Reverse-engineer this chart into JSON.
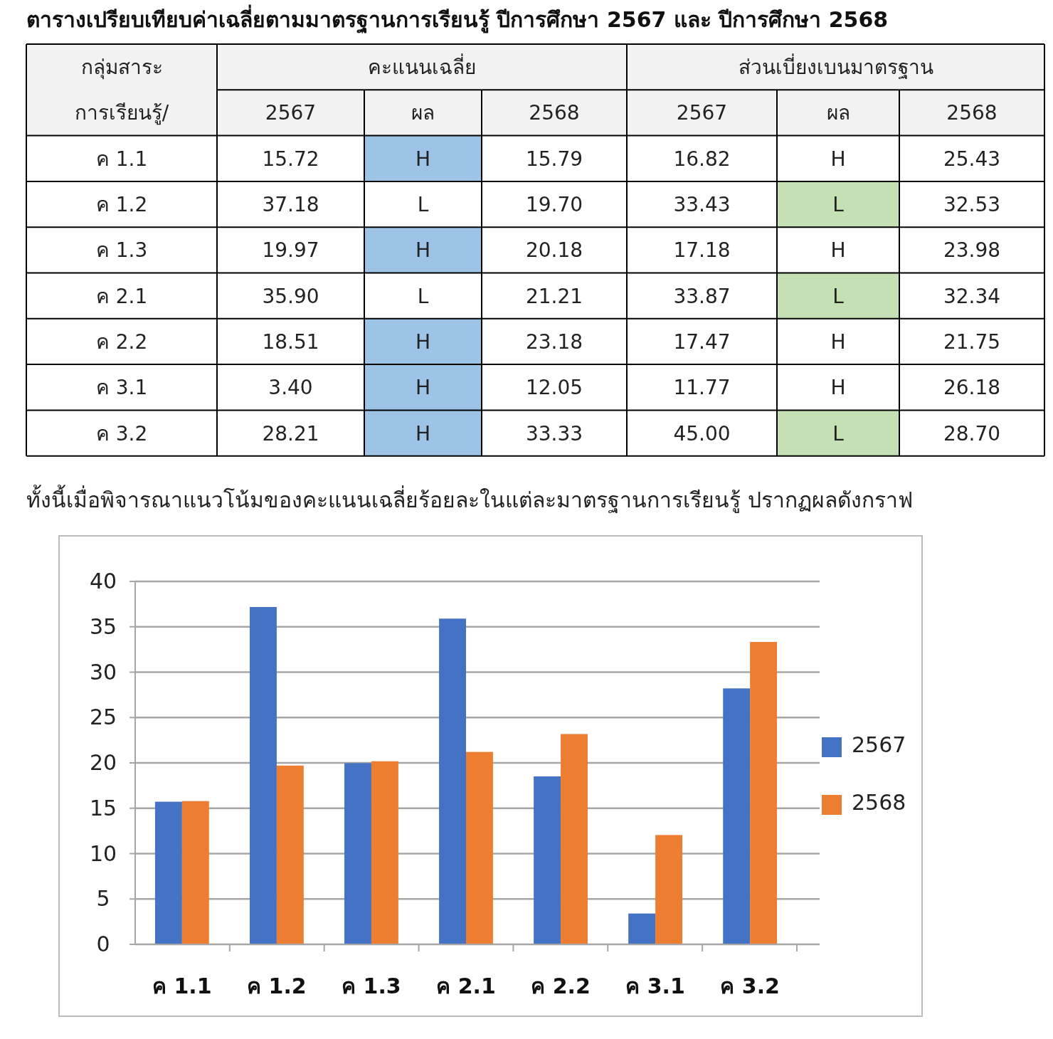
{
  "chart_data": [
    {
      "type": "other",
      "title": "ตารางเปรียบเทียบค่าเฉลี่ยตามมาตรฐานการเรียนรู้ ปีการศึกษา 2567 และ ปีการศึกษา 2568",
      "ylabel": "กลุ่มสาระ\nการเรียนรู้/",
      "annotations": [
        "คะแนนเฉลี่ย",
        "ส่วนเบี่ยงเบนมาตรฐาน"
      ],
      "categories": [
        "2567",
        "ผล",
        "2568",
        "2567",
        "ผล",
        "2568"
      ],
      "y_categories": [
        "ค 1.1",
        "ค 1.2",
        "ค 1.3",
        "ค 2.1",
        "ค 2.2",
        "ค 3.1",
        "ค 3.2"
      ],
      "cell_labels": [
        [
          "15.72",
          "H",
          "15.79",
          "16.82",
          "H",
          "25.43"
        ],
        [
          "37.18",
          "L",
          "19.70",
          "33.43",
          "L",
          "32.53"
        ],
        [
          "19.97",
          "H",
          "20.18",
          "17.18",
          "H",
          "23.98"
        ],
        [
          "35.90",
          "L",
          "21.21",
          "33.87",
          "L",
          "32.34"
        ],
        [
          "18.51",
          "H",
          "23.18",
          "17.47",
          "H",
          "21.75"
        ],
        [
          "3.40",
          "H",
          "12.05",
          "11.77",
          "H",
          "26.18"
        ],
        [
          "28.21",
          "H",
          "33.33",
          "45.00",
          "L",
          "28.70"
        ]
      ],
      "colors": [
        [
          null,
          "#9dc3e6",
          null,
          null,
          null,
          null
        ],
        [
          null,
          null,
          null,
          null,
          "#c5e0b4",
          null
        ],
        [
          null,
          "#9dc3e6",
          null,
          null,
          null,
          null
        ],
        [
          null,
          null,
          null,
          null,
          "#c5e0b4",
          null
        ],
        [
          null,
          "#9dc3e6",
          null,
          null,
          null,
          null
        ],
        [
          null,
          "#9dc3e6",
          null,
          null,
          null,
          null
        ],
        [
          null,
          "#9dc3e6",
          null,
          null,
          "#c5e0b4",
          null
        ]
      ]
    },
    {
      "type": "bar",
      "title": "ทั้งนี้เมื่อพิจารณาแนวโน้มของคะแนนเฉลี่ยร้อยละในแต่ละมาตรฐานการเรียนรู้ ปรากฏผลดังกราฟ",
      "categories": [
        "ค 1.1",
        "ค 1.2",
        "ค 1.3",
        "ค 2.1",
        "ค 2.2",
        "ค 3.1",
        "ค 3.2"
      ],
      "series": [
        {
          "name": "2567",
          "color": "#4472c4",
          "values": [
            15.72,
            37.18,
            19.97,
            35.9,
            18.51,
            3.4,
            28.21
          ]
        },
        {
          "name": "2568",
          "color": "#ed7d31",
          "values": [
            15.79,
            19.7,
            20.18,
            21.21,
            23.18,
            12.05,
            33.33
          ]
        }
      ],
      "ylim": [
        0,
        40
      ],
      "yticks": [
        0,
        5,
        10,
        15,
        20,
        25,
        30,
        35,
        40
      ],
      "grid": "y",
      "legend": "right"
    }
  ]
}
